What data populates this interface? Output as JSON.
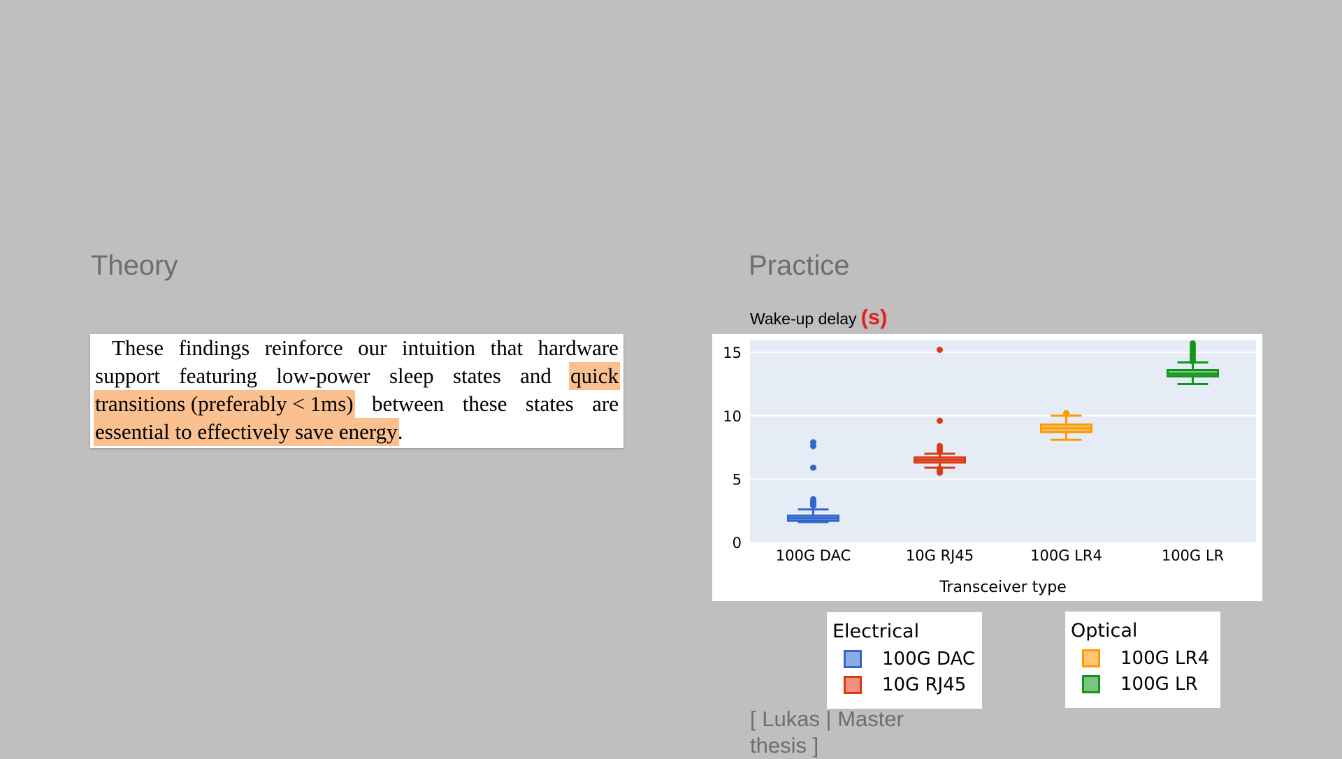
{
  "slide": {
    "theory_heading": "Theory",
    "practice_heading": "Practice",
    "footnote_line1": "[ Lukas | Master",
    "footnote_line2": "thesis ]"
  },
  "quote": {
    "line1": [
      "These",
      "findings",
      "reinforce",
      "our",
      "intuition",
      "that",
      "hardware"
    ],
    "line2_plain": [
      "support",
      "featuring",
      "low-power",
      "sleep",
      "states",
      "and"
    ],
    "line2_highlight": "quick",
    "line3_highlight_text": "transitions (preferably ",
    "line3_math_lt": "<",
    "line3_math_num": "1",
    "line3_math_unit": "ms",
    "line3_close": ")",
    "line3_plain": [
      "between",
      "these",
      "states",
      "are"
    ],
    "line4_highlight": "essential to effectively save energy",
    "line4_end": ".",
    "highlight_color": "#fac08f"
  },
  "chart_data": {
    "type": "box",
    "title": "Wake-up delay",
    "title_unit": "(s)",
    "xlabel": "Transceiver type",
    "ylabel": "",
    "ylim": [
      0,
      16
    ],
    "yticks": [
      0,
      5,
      10,
      15
    ],
    "grid": true,
    "categories": [
      "100G DAC",
      "10G RJ45",
      "100G LR4",
      "100G LR"
    ],
    "boxes": [
      {
        "category": "100G DAC",
        "min": 1.6,
        "q1": 1.7,
        "median": 1.9,
        "q3": 2.1,
        "max": 2.6,
        "outliers": [
          2.9,
          3.0,
          3.1,
          3.2,
          3.4,
          5.9,
          7.6,
          7.9
        ],
        "color": "#3366cc"
      },
      {
        "category": "10G RJ45",
        "min": 5.9,
        "q1": 6.3,
        "median": 6.5,
        "q3": 6.7,
        "max": 7.0,
        "outliers": [
          5.5,
          5.6,
          5.8,
          7.2,
          7.4,
          7.6,
          9.6,
          15.2
        ],
        "color": "#dc3912"
      },
      {
        "category": "100G LR4",
        "min": 8.1,
        "q1": 8.7,
        "median": 9.0,
        "q3": 9.3,
        "max": 10.0,
        "outliers": [
          10.2
        ],
        "color": "#ff9900"
      },
      {
        "category": "100G LR",
        "min": 12.5,
        "q1": 13.1,
        "median": 13.3,
        "q3": 13.6,
        "max": 14.2,
        "outliers": [
          14.3,
          14.5,
          14.7,
          14.9,
          15.1,
          15.3,
          15.5,
          15.7
        ],
        "color": "#109618"
      }
    ],
    "legends": [
      {
        "title": "Electrical",
        "items": [
          {
            "label": "100G DAC",
            "color": "#3366cc"
          },
          {
            "label": "10G RJ45",
            "color": "#dc3912"
          }
        ]
      },
      {
        "title": "Optical",
        "items": [
          {
            "label": "100G LR4",
            "color": "#ff9900"
          },
          {
            "label": "100G LR",
            "color": "#109618"
          }
        ]
      }
    ],
    "plot_bg": "#e5ecf6"
  }
}
